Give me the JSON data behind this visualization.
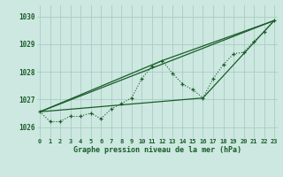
{
  "title": "Graphe pression niveau de la mer (hPa)",
  "bg_color": "#cce8e0",
  "grid_color": "#aaccc4",
  "line_color": "#1a5c2a",
  "ylim": [
    1025.6,
    1030.4
  ],
  "xlim": [
    -0.3,
    23.3
  ],
  "yticks": [
    1026,
    1027,
    1028,
    1029,
    1030
  ],
  "xtick_labels": [
    "0",
    "1",
    "2",
    "3",
    "4",
    "5",
    "6",
    "7",
    "8",
    "9",
    "10",
    "11",
    "12",
    "13",
    "14",
    "15",
    "16",
    "17",
    "18",
    "19",
    "20",
    "21",
    "22",
    "23"
  ],
  "main_x": [
    0,
    1,
    2,
    3,
    4,
    5,
    6,
    7,
    8,
    9,
    10,
    11,
    12,
    13,
    14,
    15,
    16,
    17,
    18,
    19,
    20,
    21,
    22,
    23
  ],
  "main_y": [
    1026.55,
    1026.2,
    1026.2,
    1026.4,
    1026.4,
    1026.5,
    1026.3,
    1026.65,
    1026.85,
    1027.05,
    1027.75,
    1028.2,
    1028.4,
    1027.95,
    1027.55,
    1027.35,
    1027.05,
    1027.75,
    1028.25,
    1028.65,
    1028.7,
    1029.1,
    1029.45,
    1029.85
  ],
  "line1_x": [
    0,
    23
  ],
  "line1_y": [
    1026.55,
    1029.85
  ],
  "line2_x": [
    0,
    12,
    23
  ],
  "line2_y": [
    1026.55,
    1028.4,
    1029.85
  ],
  "line3_x": [
    0,
    16,
    23
  ],
  "line3_y": [
    1026.55,
    1027.05,
    1029.85
  ]
}
